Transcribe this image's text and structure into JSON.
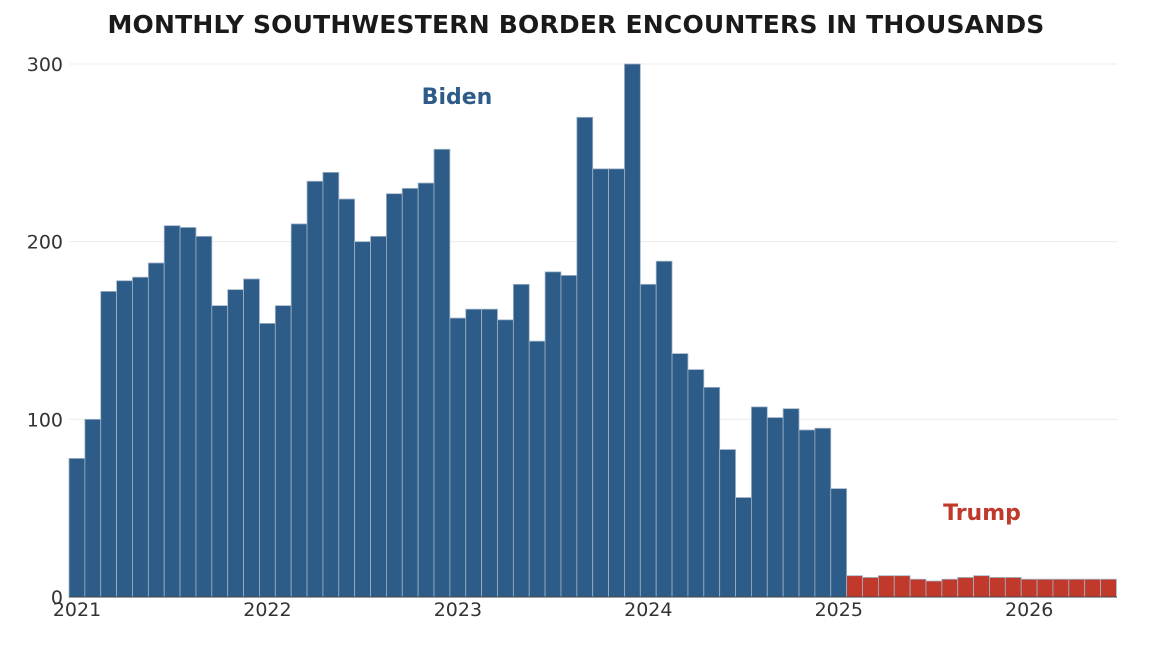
{
  "chart_data": {
    "type": "bar",
    "title": "MONTHLY SOUTHWESTERN BORDER ENCOUNTERS IN THOUSANDS",
    "xlabel": "",
    "ylabel": "",
    "ylim": [
      0,
      300
    ],
    "y_ticks": [
      "0",
      "100",
      "200",
      "300"
    ],
    "x_ticks": [
      "2021",
      "2022",
      "2023",
      "2024",
      "2025",
      "2026"
    ],
    "x_start": "2021-01",
    "grid": "horizontal",
    "colors": {
      "biden": "#2e5c88",
      "trump": "#c0392b",
      "grid": "#ececec",
      "bar_edge": "#9fb4c8"
    },
    "annotations": [
      {
        "text": "Biden",
        "color": "#2e5c88"
      },
      {
        "text": "Trump",
        "color": "#c0392b"
      }
    ],
    "series": [
      {
        "name": "Biden",
        "color": "#2e5c88",
        "values": [
          78,
          100,
          172,
          178,
          180,
          188,
          209,
          208,
          203,
          164,
          173,
          179,
          154,
          164,
          210,
          234,
          239,
          224,
          200,
          203,
          227,
          230,
          233,
          252,
          157,
          162,
          162,
          156,
          176,
          144,
          183,
          181,
          270,
          241,
          241,
          300,
          176,
          189,
          137,
          128,
          118,
          83,
          56,
          107,
          101,
          106,
          94,
          95,
          61
        ]
      },
      {
        "name": "Trump",
        "color": "#c0392b",
        "values": [
          12,
          11,
          12,
          12,
          10,
          9,
          10,
          11,
          12,
          11,
          11,
          10,
          10,
          10,
          10,
          10,
          10
        ]
      }
    ]
  }
}
